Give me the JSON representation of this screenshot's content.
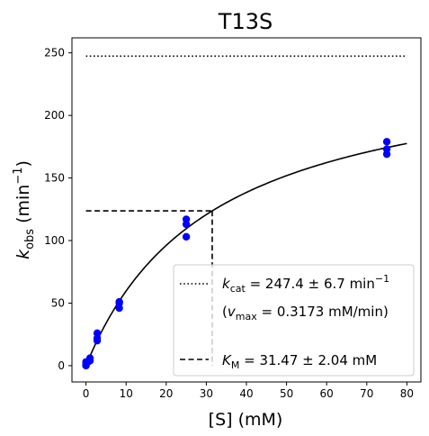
{
  "chart_data": {
    "type": "scatter",
    "title": "T13S",
    "xlabel_main": "[S] (mM)",
    "ylabel_main": "k",
    "ylabel_sub": "obs",
    "ylabel_unit": "(min",
    "ylabel_exp": "−1",
    "ylabel_close": ")",
    "xlim": [
      -3.5,
      83.5
    ],
    "ylim": [
      -13,
      262
    ],
    "xticks": [
      0,
      10,
      20,
      30,
      40,
      50,
      60,
      70,
      80
    ],
    "yticks": [
      0,
      50,
      100,
      150,
      200,
      250
    ],
    "grid": false,
    "point_color": "#0000ff",
    "points": [
      {
        "x": 0,
        "y": 0
      },
      {
        "x": 0,
        "y": 1
      },
      {
        "x": 0,
        "y": 3
      },
      {
        "x": 0.5,
        "y": 3
      },
      {
        "x": 1,
        "y": 4
      },
      {
        "x": 1,
        "y": 6
      },
      {
        "x": 2.8,
        "y": 20
      },
      {
        "x": 2.8,
        "y": 22
      },
      {
        "x": 2.8,
        "y": 26
      },
      {
        "x": 8.3,
        "y": 46
      },
      {
        "x": 8.3,
        "y": 50
      },
      {
        "x": 8.3,
        "y": 51
      },
      {
        "x": 25,
        "y": 103
      },
      {
        "x": 25,
        "y": 113
      },
      {
        "x": 25,
        "y": 117
      },
      {
        "x": 75,
        "y": 169
      },
      {
        "x": 75,
        "y": 173
      },
      {
        "x": 75,
        "y": 179
      }
    ],
    "fit": {
      "kcat": 247.4,
      "KM": 31.47,
      "x_range": [
        0,
        80
      ]
    },
    "kcat_line": {
      "y": 247.4,
      "x_range": [
        0,
        80
      ]
    },
    "km_lines": {
      "x": 31.47,
      "y": 123.7,
      "x_start": 0,
      "y_start": 0
    },
    "legend": {
      "placement": "lower-right",
      "kcat_label_main": "k",
      "kcat_label_sub": "cat",
      "kcat_label_value": " = 247.4 ± 6.7 min",
      "kcat_label_exp": "−1",
      "vmax_label_open": "(v",
      "vmax_label_sub": "max",
      "vmax_label_value": " = 0.3173 mM/min)",
      "km_label_main": "K",
      "km_label_sub": "M",
      "km_label_value": " = 31.47 ± 2.04 mM"
    }
  }
}
